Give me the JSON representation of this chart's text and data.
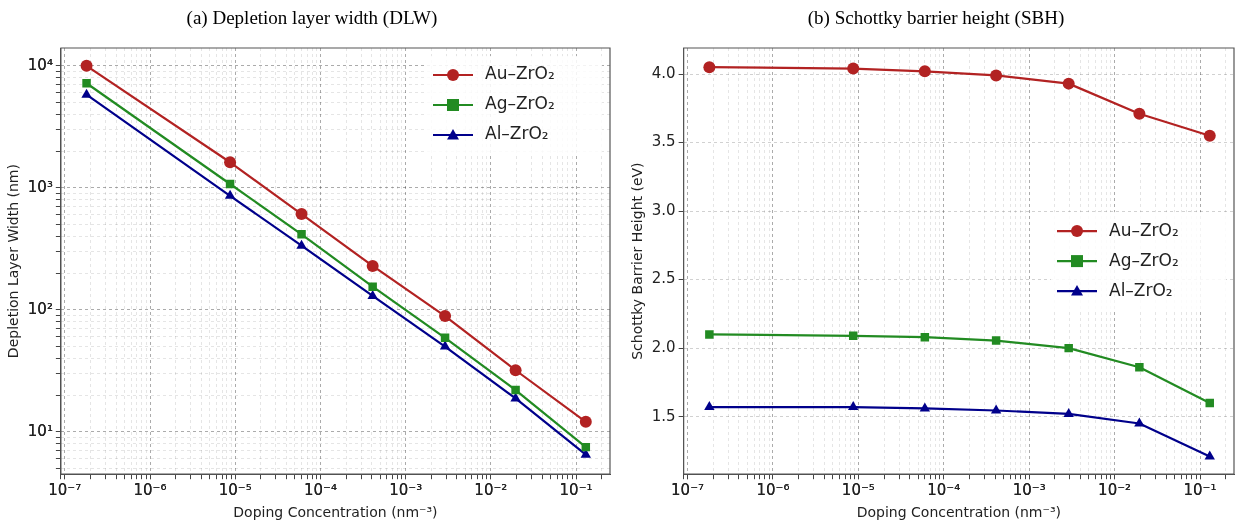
{
  "chart_data": [
    {
      "type": "line",
      "title": "(a) Depletion layer width (DLW)",
      "xlabel": "Doping Concentration (nm⁻³)",
      "ylabel": "Depletion Layer Width (nm)",
      "log": "xy",
      "grid": true,
      "legend": "top right",
      "line_style": "solid",
      "x": [
        1.8e-07,
        8.7e-06,
        6e-05,
        0.00041,
        0.0029,
        0.0195,
        0.13
      ],
      "xlim": [
        9e-08,
        0.25
      ],
      "xticks": [
        {
          "value": 1e-07,
          "label": "10⁻⁷"
        },
        {
          "value": 1e-06,
          "label": "10⁻⁶"
        },
        {
          "value": 1e-05,
          "label": "10⁻⁵"
        },
        {
          "value": 0.0001,
          "label": "10⁻⁴"
        },
        {
          "value": 0.001,
          "label": "10⁻³"
        },
        {
          "value": 0.01,
          "label": "10⁻²"
        },
        {
          "value": 0.1,
          "label": "10⁻¹"
        }
      ],
      "ylim": [
        4.5,
        14000
      ],
      "yticks": [
        {
          "value": 10,
          "label": "10¹"
        },
        {
          "value": 100,
          "label": "10²"
        },
        {
          "value": 1000,
          "label": "10³"
        },
        {
          "value": 10000,
          "label": "10⁴"
        }
      ],
      "series": [
        {
          "name": "Au–ZrO₂",
          "color": "#b22222",
          "marker": "circle",
          "values": [
            10000,
            1620,
            610,
            229,
            89,
            32,
            12.1
          ]
        },
        {
          "name": "Ag–ZrO₂",
          "color": "#228b22",
          "marker": "square",
          "values": [
            7200,
            1075,
            416,
            155,
            59,
            22,
            7.5
          ]
        },
        {
          "name": "Al–ZrO₂",
          "color": "#00008b",
          "marker": "triangle",
          "values": [
            5800,
            860,
            336,
            130,
            50,
            18.8,
            6.5
          ]
        }
      ]
    },
    {
      "type": "line",
      "title": "(b) Schottky barrier height (SBH)",
      "xlabel": "Doping Concentration (nm⁻³)",
      "ylabel": "Schottky Barrier Height (eV)",
      "log": "x",
      "grid": true,
      "legend": "right",
      "line_style": "solid",
      "x": [
        1.8e-07,
        8.7e-06,
        6e-05,
        0.00041,
        0.0029,
        0.0195,
        0.13
      ],
      "xlim": [
        9e-08,
        0.25
      ],
      "xticks": [
        {
          "value": 1e-07,
          "label": "10⁻⁷"
        },
        {
          "value": 1e-06,
          "label": "10⁻⁶"
        },
        {
          "value": 1e-05,
          "label": "10⁻⁵"
        },
        {
          "value": 0.0001,
          "label": "10⁻⁴"
        },
        {
          "value": 0.001,
          "label": "10⁻³"
        },
        {
          "value": 0.01,
          "label": "10⁻²"
        },
        {
          "value": 0.1,
          "label": "10⁻¹"
        }
      ],
      "ylim": [
        1.08,
        4.19
      ],
      "yticks": [
        1.5,
        {
          "value": 2,
          "label": "2.0"
        },
        2.5,
        {
          "value": 3,
          "label": "3.0"
        },
        3.5,
        {
          "value": 4,
          "label": "4.0"
        }
      ],
      "series": [
        {
          "name": "Au–ZrO₂",
          "color": "#b22222",
          "marker": "circle",
          "values": [
            4.05,
            4.04,
            4.02,
            3.99,
            3.93,
            3.71,
            3.55
          ]
        },
        {
          "name": "Ag–ZrO₂",
          "color": "#228b22",
          "marker": "square",
          "values": [
            2.1,
            2.09,
            2.08,
            2.055,
            2.0,
            1.86,
            1.6
          ]
        },
        {
          "name": "Al–ZrO₂",
          "color": "#00008b",
          "marker": "triangle",
          "values": [
            1.57,
            1.57,
            1.56,
            1.545,
            1.52,
            1.45,
            1.21
          ]
        }
      ]
    }
  ]
}
